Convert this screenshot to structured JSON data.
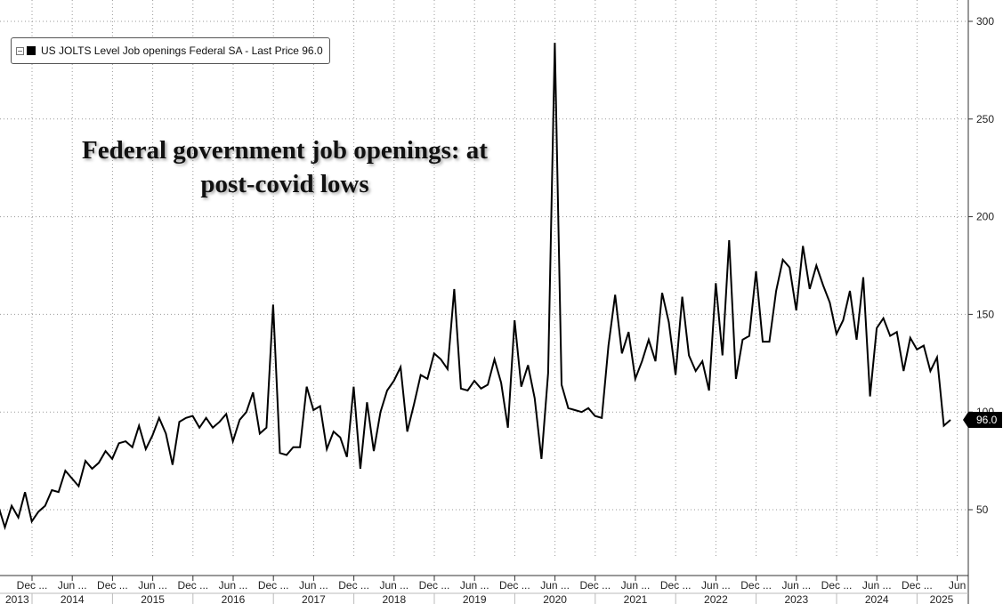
{
  "legend": {
    "label": "US JOLTS Level Job openings Federal SA - Last Price 96.0",
    "color": "#000000"
  },
  "headline": {
    "line1": "Federal government job openings: at",
    "line2": "post-covid lows"
  },
  "chart_data": {
    "type": "line",
    "series": [
      {
        "name": "US JOLTS Level Job openings Federal SA",
        "color": "#000000",
        "values": [
          52,
          41,
          52,
          46,
          59,
          44,
          49,
          52,
          60,
          59,
          70,
          66,
          62,
          75,
          71,
          74,
          80,
          76,
          84,
          85,
          82,
          93,
          81,
          88,
          97,
          89,
          73,
          95,
          97,
          98,
          92,
          97,
          92,
          95,
          99,
          85,
          96,
          100,
          110,
          89,
          92,
          155,
          79,
          78,
          82,
          82,
          113,
          101,
          103,
          81,
          90,
          87,
          77,
          113,
          71,
          105,
          80,
          100,
          111,
          116,
          123,
          90,
          104,
          119,
          117,
          130,
          127,
          122,
          163,
          112,
          111,
          116,
          112,
          114,
          127,
          115,
          92,
          147,
          113,
          124,
          107,
          76,
          120,
          289,
          114,
          102,
          101,
          100,
          102,
          98,
          97,
          134,
          160,
          130,
          141,
          117,
          126,
          137,
          126,
          161,
          146,
          119,
          159,
          129,
          121,
          126,
          111,
          166,
          129,
          188,
          117,
          137,
          139,
          172,
          136,
          136,
          162,
          178,
          174,
          152,
          185,
          163,
          175,
          165,
          156,
          140,
          147,
          162,
          137,
          169,
          108,
          143,
          148,
          139,
          141,
          121,
          138,
          132,
          134,
          121,
          128,
          93,
          96
        ]
      }
    ],
    "last_value_label": "96.0",
    "y_ticks": [
      50,
      100,
      150,
      200,
      250,
      300
    ],
    "ylim": [
      25,
      305
    ],
    "x_month_labels": [
      "Dec ...",
      "Jun ...",
      "Dec ...",
      "Jun ...",
      "Dec ...",
      "Jun ...",
      "Dec ...",
      "Jun ...",
      "Dec ...",
      "Jun ...",
      "Dec ...",
      "Jun ...",
      "Dec ...",
      "Jun ...",
      "Dec ...",
      "Jun ...",
      "Dec ...",
      "Jun ...",
      "Dec ...",
      "Jun ...",
      "Dec ...",
      "Jun ...",
      "Dec ...",
      "Jun"
    ],
    "x_year_labels": [
      "2013",
      "2014",
      "2015",
      "2016",
      "2017",
      "2018",
      "2019",
      "2020",
      "2021",
      "2022",
      "2023",
      "2024",
      "2025"
    ],
    "grid": true,
    "legend_position": "top-left",
    "y_axis_side": "right"
  }
}
